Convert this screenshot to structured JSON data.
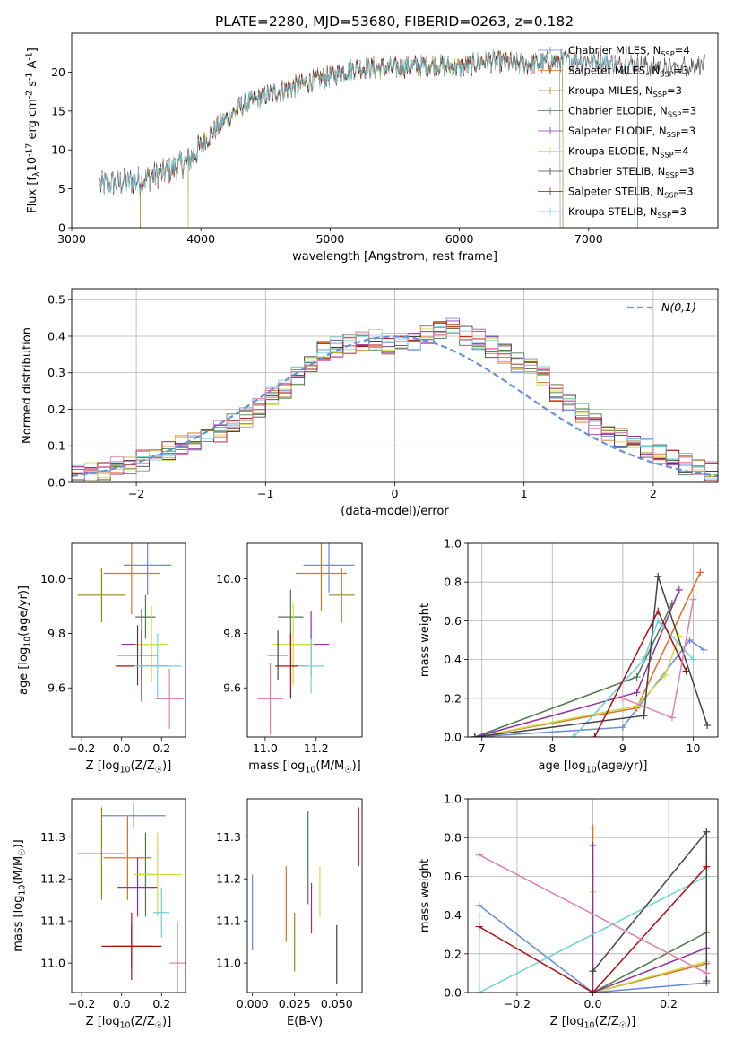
{
  "figure": {
    "title": "PLATE=2280, MJD=53680, FIBERID=0263, z=0.182"
  },
  "colors": [
    "#6688dd",
    "#e07020",
    "#a08020",
    "#4a7a4a",
    "#9030a0",
    "#ccdd44",
    "#444444",
    "#aa1010",
    "#70d0d8",
    "#e080b0"
  ],
  "chart_data": [
    {
      "id": "spectrum",
      "type": "line",
      "title": "PLATE=2280, MJD=53680, FIBERID=0263, z=0.182",
      "xlabel": "wavelength [Angstrom, rest frame]",
      "ylabel": "Flux [f$_\\lambda$10$^{-17}$ erg cm$^{-2}$ s$^{-1}$ A$^{-1}$]",
      "xlim": [
        3000,
        8000
      ],
      "ylim": [
        0,
        25
      ],
      "xticks": [
        3000,
        4000,
        5000,
        6000,
        7000
      ],
      "yticks": [
        0,
        5,
        10,
        15,
        20
      ],
      "grid": false,
      "legend_position": "right",
      "series": [
        {
          "name": "Chabrier MILES, N$_{SSP}$=4",
          "start": 3220,
          "end": 6780
        },
        {
          "name": "Salpeter MILES, N$_{SSP}$=3",
          "start": 3530,
          "end": 6800
        },
        {
          "name": "Kroupa MILES, N$_{SSP}$=3",
          "start": 3530,
          "end": 6800
        },
        {
          "name": "Chabrier ELODIE, N$_{SSP}$=3",
          "start": 3900,
          "end": 6800
        },
        {
          "name": "Salpeter ELODIE, N$_{SSP}$=3",
          "start": 3900,
          "end": 6800
        },
        {
          "name": "Kroupa ELODIE, N$_{SSP}$=4",
          "start": 3900,
          "end": 6800
        },
        {
          "name": "Chabrier STELIB, N$_{SSP}$=3",
          "start": 3220,
          "end": 7900
        },
        {
          "name": "Salpeter STELIB, N$_{SSP}$=3",
          "start": 3220,
          "end": 7380
        },
        {
          "name": "Kroupa STELIB, N$_{SSP}$=3",
          "start": 3220,
          "end": 7380
        }
      ],
      "continuum": {
        "x": [
          3220,
          3500,
          3700,
          3900,
          4000,
          4100,
          4300,
          4500,
          4800,
          5000,
          5200,
          5500,
          5800,
          6000,
          6200,
          6500,
          6800,
          7000,
          7200,
          7400,
          7600,
          7900
        ],
        "y": [
          5.5,
          6.0,
          7.0,
          8.5,
          10.5,
          12.5,
          15.5,
          17.0,
          18.5,
          19.5,
          20.5,
          20.5,
          21.0,
          20.5,
          21.5,
          21.0,
          21.5,
          21.5,
          21.0,
          21.0,
          20.5,
          21.0
        ]
      }
    },
    {
      "id": "residuals",
      "type": "histogram",
      "xlabel": "(data-model)/error",
      "ylabel": "Normed distribution",
      "xlim": [
        -2.5,
        2.5
      ],
      "ylim": [
        0,
        0.53
      ],
      "xticks": [
        -2,
        -1,
        0,
        1,
        2
      ],
      "yticks": [
        0.0,
        0.1,
        0.2,
        0.3,
        0.4,
        0.5
      ],
      "grid": true,
      "legend": "$\\mathcal{N}(0,1)$",
      "legend_position": "top-right",
      "bin_edges_start": -2.5,
      "bin_width": 0.1,
      "base_heights": [
        0.02,
        0.025,
        0.03,
        0.04,
        0.05,
        0.06,
        0.07,
        0.085,
        0.1,
        0.11,
        0.125,
        0.14,
        0.16,
        0.18,
        0.205,
        0.23,
        0.25,
        0.29,
        0.33,
        0.36,
        0.37,
        0.38,
        0.39,
        0.39,
        0.38,
        0.39,
        0.39,
        0.4,
        0.42,
        0.43,
        0.4,
        0.39,
        0.37,
        0.35,
        0.33,
        0.31,
        0.29,
        0.24,
        0.22,
        0.19,
        0.16,
        0.14,
        0.12,
        0.1,
        0.09,
        0.08,
        0.06,
        0.05,
        0.04,
        0.03
      ]
    },
    {
      "id": "age_vs_Z",
      "type": "errorbar",
      "xlabel": "Z [log$_{10}$(Z/Z$_\\odot$)]",
      "ylabel": "age  [log$_{10}$(age/yr)]",
      "xlim": [
        -0.25,
        0.32
      ],
      "ylim": [
        9.42,
        10.13
      ],
      "xticks": [
        -0.2,
        0.0,
        0.2
      ],
      "yticks": [
        9.6,
        9.8,
        10.0
      ],
      "points": [
        {
          "x": 0.13,
          "xerr": 0.12,
          "y": 10.05,
          "yerr": 0.11
        },
        {
          "x": 0.05,
          "xerr": 0.14,
          "y": 10.02,
          "yerr": 0.15
        },
        {
          "x": -0.1,
          "xerr": 0.12,
          "y": 9.94,
          "yerr": 0.1
        },
        {
          "x": 0.12,
          "xerr": 0.05,
          "y": 9.86,
          "yerr": 0.08
        },
        {
          "x": 0.1,
          "xerr": 0.1,
          "y": 9.76,
          "yerr": 0.13
        },
        {
          "x": 0.15,
          "xerr": 0.08,
          "y": 9.76,
          "yerr": 0.14
        },
        {
          "x": 0.08,
          "xerr": 0.1,
          "y": 9.72,
          "yerr": 0.11
        },
        {
          "x": 0.1,
          "xerr": 0.13,
          "y": 9.68,
          "yerr": 0.13
        },
        {
          "x": 0.18,
          "xerr": 0.12,
          "y": 9.68,
          "yerr": 0.12
        },
        {
          "x": 0.24,
          "xerr": 0.07,
          "y": 9.56,
          "yerr": 0.11
        }
      ]
    },
    {
      "id": "age_vs_mass",
      "type": "errorbar",
      "xlabel": "mass [log$_{10}$(M/M$_\\odot$)]",
      "ylabel": "",
      "xlim": [
        10.93,
        11.38
      ],
      "ylim": [
        9.42,
        10.13
      ],
      "xticks": [
        11.0,
        11.2
      ],
      "yticks": [
        9.6,
        9.8,
        10.0
      ],
      "points": [
        {
          "x": 11.25,
          "xerr": 0.1,
          "y": 10.05,
          "yerr": 0.1
        },
        {
          "x": 11.22,
          "xerr": 0.1,
          "y": 10.02,
          "yerr": 0.14
        },
        {
          "x": 11.3,
          "xerr": 0.05,
          "y": 9.94,
          "yerr": 0.1
        },
        {
          "x": 11.1,
          "xerr": 0.05,
          "y": 9.86,
          "yerr": 0.1
        },
        {
          "x": 11.18,
          "xerr": 0.07,
          "y": 9.76,
          "yerr": 0.12
        },
        {
          "x": 11.11,
          "xerr": 0.08,
          "y": 9.76,
          "yerr": 0.15
        },
        {
          "x": 11.05,
          "xerr": 0.04,
          "y": 9.72,
          "yerr": 0.09
        },
        {
          "x": 11.1,
          "xerr": 0.06,
          "y": 9.68,
          "yerr": 0.12
        },
        {
          "x": 11.18,
          "xerr": 0.05,
          "y": 9.68,
          "yerr": 0.1
        },
        {
          "x": 11.02,
          "xerr": 0.05,
          "y": 9.56,
          "yerr": 0.13
        }
      ]
    },
    {
      "id": "weight_vs_age",
      "type": "line",
      "xlabel": "age  [log$_{10}$(age/yr)]",
      "ylabel": "mass weight",
      "xlim": [
        6.8,
        10.35
      ],
      "ylim": [
        0,
        1
      ],
      "xticks": [
        7,
        8,
        9,
        10
      ],
      "yticks": [
        0.0,
        0.2,
        0.4,
        0.6,
        0.8,
        1.0
      ],
      "grid": true,
      "series": [
        {
          "ci": 0,
          "x": [
            6.9,
            9.0,
            9.95,
            10.15
          ],
          "y": [
            0.0,
            0.05,
            0.5,
            0.45
          ]
        },
        {
          "ci": 1,
          "x": [
            6.9,
            9.2,
            10.1
          ],
          "y": [
            0.0,
            0.15,
            0.85
          ]
        },
        {
          "ci": 5,
          "x": [
            6.9,
            9.2,
            9.6,
            9.8
          ],
          "y": [
            0.0,
            0.16,
            0.32,
            0.52
          ]
        },
        {
          "ci": 3,
          "x": [
            6.9,
            9.2,
            9.7
          ],
          "y": [
            0.0,
            0.31,
            0.69
          ]
        },
        {
          "ci": 4,
          "x": [
            6.9,
            9.2,
            9.8
          ],
          "y": [
            0.0,
            0.23,
            0.76
          ]
        },
        {
          "ci": 8,
          "x": [
            8.3,
            9.3,
            9.5,
            10.0
          ],
          "y": [
            0.0,
            0.4,
            0.6,
            0.4
          ]
        },
        {
          "ci": 6,
          "x": [
            6.9,
            9.3,
            9.5,
            10.2
          ],
          "y": [
            0.0,
            0.11,
            0.83,
            0.06
          ]
        },
        {
          "ci": 7,
          "x": [
            8.6,
            9.5,
            9.9
          ],
          "y": [
            0.0,
            0.65,
            0.34
          ]
        },
        {
          "ci": 9,
          "x": [
            9.0,
            9.7,
            10.0
          ],
          "y": [
            0.2,
            0.1,
            0.71
          ]
        }
      ]
    },
    {
      "id": "mass_vs_Z",
      "type": "errorbar",
      "xlabel": "Z [log$_{10}$(Z/Z$_\\odot$)]",
      "ylabel": "mass [log$_{10}$(M/M$_\\odot$)]",
      "xlim": [
        -0.25,
        0.32
      ],
      "ylim": [
        10.93,
        11.39
      ],
      "xticks": [
        -0.2,
        0.0,
        0.2
      ],
      "yticks": [
        11.0,
        11.1,
        11.2,
        11.3
      ],
      "points": [
        {
          "x": 0.06,
          "xerr": 0.16,
          "y": 11.35,
          "yerr": 0.03
        },
        {
          "x": 0.03,
          "xerr": 0.12,
          "y": 11.25,
          "yerr": 0.1
        },
        {
          "x": -0.1,
          "xerr": 0.12,
          "y": 11.26,
          "yerr": 0.11
        },
        {
          "x": 0.12,
          "xerr": 0.05,
          "y": 11.21,
          "yerr": 0.1
        },
        {
          "x": 0.08,
          "xerr": 0.1,
          "y": 11.18,
          "yerr": 0.07
        },
        {
          "x": 0.18,
          "xerr": 0.12,
          "y": 11.21,
          "yerr": 0.1
        },
        {
          "x": 0.05,
          "xerr": 0.1,
          "y": 11.04,
          "yerr": 0.05
        },
        {
          "x": 0.05,
          "xerr": 0.15,
          "y": 11.04,
          "yerr": 0.08
        },
        {
          "x": 0.2,
          "xerr": 0.04,
          "y": 11.12,
          "yerr": 0.06
        },
        {
          "x": 0.28,
          "xerr": 0.04,
          "y": 11.0,
          "yerr": 0.1
        }
      ]
    },
    {
      "id": "mass_vs_ebv",
      "type": "errorbar",
      "xlabel": "E(B-V)",
      "ylabel": "",
      "xlim": [
        -0.003,
        0.065
      ],
      "ylim": [
        10.93,
        11.39
      ],
      "xticks": [
        0.0,
        0.025,
        0.05
      ],
      "yticks": [
        11.0,
        11.1,
        11.2,
        11.3
      ],
      "points": [
        {
          "x": 0.0,
          "y": 11.12,
          "yerr": 0.09
        },
        {
          "x": 0.02,
          "y": 11.14,
          "yerr": 0.09
        },
        {
          "x": 0.025,
          "y": 11.05,
          "yerr": 0.07
        },
        {
          "x": 0.033,
          "y": 11.25,
          "yerr": 0.11
        },
        {
          "x": 0.035,
          "y": 11.13,
          "yerr": 0.06
        },
        {
          "x": 0.04,
          "y": 11.17,
          "yerr": 0.06
        },
        {
          "x": 0.05,
          "y": 11.02,
          "yerr": 0.07
        },
        {
          "x": 0.063,
          "y": 11.3,
          "yerr": 0.07
        }
      ]
    },
    {
      "id": "weight_vs_Z",
      "type": "line",
      "xlabel": "Z [log$_{10}$(Z/Z$_\\odot$)]",
      "ylabel": "mass weight",
      "xlim": [
        -0.33,
        0.33
      ],
      "ylim": [
        0,
        1
      ],
      "xticks": [
        -0.2,
        0.0,
        0.2
      ],
      "yticks": [
        0.0,
        0.2,
        0.4,
        0.6,
        0.8,
        1.0
      ],
      "grid": true,
      "series": [
        {
          "ci": 0,
          "x": [
            -0.3,
            0.0,
            0.3
          ],
          "y": [
            0.45,
            0.0,
            0.05
          ]
        },
        {
          "ci": 1,
          "x": [
            0.0,
            0.0,
            0.3
          ],
          "y": [
            0.85,
            0.0,
            0.15
          ]
        },
        {
          "ci": 5,
          "x": [
            0.0,
            0.0,
            0.3
          ],
          "y": [
            0.52,
            0.0,
            0.16
          ]
        },
        {
          "ci": 3,
          "x": [
            0.0,
            0.3
          ],
          "y": [
            0.0,
            0.31
          ]
        },
        {
          "ci": 4,
          "x": [
            0.0,
            0.0,
            0.3
          ],
          "y": [
            0.76,
            0.0,
            0.23
          ]
        },
        {
          "ci": 8,
          "x": [
            -0.3,
            -0.3,
            0.3
          ],
          "y": [
            0.4,
            0.0,
            0.6
          ]
        },
        {
          "ci": 6,
          "x": [
            0.0,
            0.3,
            0.3
          ],
          "y": [
            0.11,
            0.83,
            0.06
          ]
        },
        {
          "ci": 7,
          "x": [
            -0.3,
            0.0,
            0.3
          ],
          "y": [
            0.34,
            0.0,
            0.65
          ]
        },
        {
          "ci": 9,
          "x": [
            -0.3,
            0.3
          ],
          "y": [
            0.71,
            0.1
          ]
        }
      ]
    }
  ]
}
